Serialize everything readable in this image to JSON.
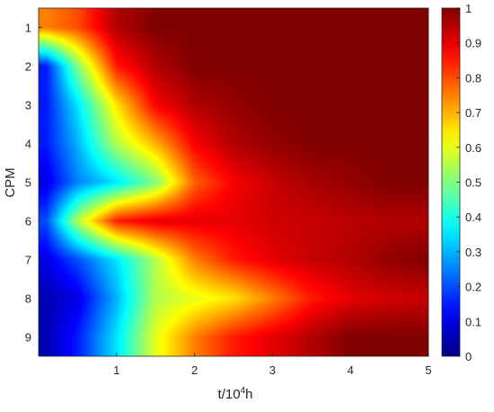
{
  "chart_data": {
    "type": "heatmap",
    "title": "",
    "xlabel": "t/10",
    "xlabel_sup": "4",
    "xlabel_suffix": "h",
    "ylabel": "CPM",
    "xlim": [
      0,
      5
    ],
    "ylim": [
      0.5,
      9.5
    ],
    "y_reversed": true,
    "x_ticks": [
      1,
      2,
      3,
      4,
      5
    ],
    "x_tick_labels": [
      "1",
      "2",
      "3",
      "4",
      "5"
    ],
    "y_ticks": [
      1,
      2,
      3,
      4,
      5,
      6,
      7,
      8,
      9
    ],
    "y_tick_labels": [
      "1",
      "2",
      "3",
      "4",
      "5",
      "6",
      "7",
      "8",
      "9"
    ],
    "colorbar": {
      "colormap": "jet",
      "range": [
        0,
        1
      ],
      "ticks": [
        0,
        0.1,
        0.2,
        0.3,
        0.4,
        0.5,
        0.6,
        0.7,
        0.8,
        0.9,
        1
      ],
      "tick_labels": [
        "0",
        "0.1",
        "0.2",
        "0.3",
        "0.4",
        "0.5",
        "0.6",
        "0.7",
        "0.8",
        "0.9",
        "1"
      ],
      "position": "right"
    },
    "x": [
      0.1,
      0.5,
      1.0,
      1.5,
      2.0,
      2.5,
      3.0,
      3.5,
      4.0,
      4.5,
      5.0
    ],
    "y": [
      1,
      2,
      3,
      4,
      5,
      6,
      7,
      8,
      9
    ],
    "z": [
      [
        0.75,
        0.8,
        0.95,
        1.0,
        1.0,
        1.0,
        1.0,
        1.0,
        1.0,
        1.0,
        1.0
      ],
      [
        0.15,
        0.5,
        0.85,
        0.95,
        1.0,
        1.0,
        1.0,
        1.0,
        1.0,
        1.0,
        1.0
      ],
      [
        0.15,
        0.35,
        0.65,
        0.88,
        0.95,
        0.98,
        1.0,
        1.0,
        1.0,
        1.0,
        1.0
      ],
      [
        0.15,
        0.3,
        0.55,
        0.7,
        0.88,
        0.95,
        0.98,
        1.0,
        1.0,
        1.0,
        1.0
      ],
      [
        0.1,
        0.25,
        0.35,
        0.5,
        0.78,
        0.88,
        0.93,
        0.96,
        0.98,
        1.0,
        1.0
      ],
      [
        0.2,
        0.55,
        0.85,
        0.9,
        0.9,
        0.9,
        0.92,
        0.93,
        0.94,
        0.95,
        0.95
      ],
      [
        0.1,
        0.2,
        0.35,
        0.55,
        0.75,
        0.85,
        0.9,
        0.93,
        0.95,
        0.98,
        1.0
      ],
      [
        0.05,
        0.1,
        0.3,
        0.55,
        0.6,
        0.65,
        0.75,
        0.85,
        0.9,
        0.92,
        0.93
      ],
      [
        0.05,
        0.15,
        0.35,
        0.6,
        0.75,
        0.85,
        0.9,
        0.95,
        1.0,
        1.0,
        1.0
      ]
    ],
    "grid": false,
    "legend": "none"
  }
}
